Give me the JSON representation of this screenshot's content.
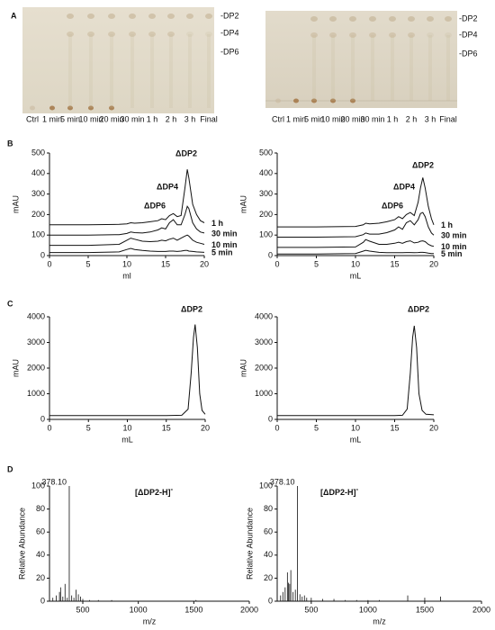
{
  "panels": [
    "A",
    "B",
    "C",
    "D"
  ],
  "tlc": [
    {
      "lanes": [
        "Ctrl",
        "1 min",
        "5 min",
        "10 min",
        "20 min",
        "30 min",
        "1 h",
        "2 h",
        "3 h",
        "Final"
      ],
      "markers": [
        "-DP2",
        "-DP4",
        "-DP6"
      ]
    },
    {
      "lanes": [
        "Ctrl",
        "1 min",
        "5 min",
        "10 min",
        "20 min",
        "30 min",
        "1 h",
        "2 h",
        "3 h",
        "Final"
      ],
      "markers": [
        "-DP2",
        "-DP4",
        "-DP6"
      ]
    }
  ],
  "chart_data": [
    {
      "type": "line",
      "xlabel": "ml",
      "ylabel": "mAU",
      "xlim": [
        0,
        20
      ],
      "ylim": [
        0,
        500
      ],
      "xticks": [
        0,
        5,
        10,
        15,
        20
      ],
      "yticks": [
        0,
        100,
        200,
        300,
        400,
        500
      ],
      "annotations": [
        "ΔDP2",
        "ΔDP4",
        "ΔDP6"
      ],
      "x": [
        0,
        5,
        9,
        10,
        10.5,
        11,
        12,
        13,
        14,
        14.5,
        15,
        15.5,
        16,
        16.5,
        17,
        17.5,
        17.8,
        18,
        18.5,
        19,
        19.5,
        20
      ],
      "series": [
        {
          "name": "1 h",
          "color": "#111111",
          "values": [
            150,
            150,
            152,
            155,
            160,
            158,
            160,
            165,
            170,
            180,
            175,
            195,
            205,
            190,
            195,
            330,
            420,
            380,
            250,
            200,
            170,
            160
          ]
        },
        {
          "name": "30 min",
          "color": "#111111",
          "values": [
            100,
            100,
            102,
            108,
            115,
            112,
            110,
            115,
            125,
            135,
            130,
            160,
            175,
            150,
            150,
            200,
            240,
            230,
            160,
            130,
            115,
            110
          ]
        },
        {
          "name": "10 min",
          "color": "#111111",
          "values": [
            50,
            50,
            55,
            75,
            85,
            80,
            70,
            68,
            70,
            75,
            72,
            80,
            85,
            75,
            85,
            95,
            100,
            95,
            75,
            65,
            60,
            55
          ]
        },
        {
          "name": "5 min",
          "color": "#111111",
          "values": [
            15,
            15,
            18,
            30,
            35,
            30,
            25,
            22,
            20,
            20,
            20,
            22,
            22,
            20,
            22,
            25,
            25,
            22,
            20,
            18,
            17,
            16
          ]
        }
      ]
    },
    {
      "type": "line",
      "xlabel": "mL",
      "ylabel": "mAU",
      "xlim": [
        0,
        20
      ],
      "ylim": [
        0,
        500
      ],
      "xticks": [
        0,
        5,
        10,
        15,
        20
      ],
      "yticks": [
        0,
        100,
        200,
        300,
        400,
        500
      ],
      "annotations": [
        "ΔDP2",
        "ΔDP4",
        "ΔDP6"
      ],
      "x": [
        0,
        5,
        10,
        11,
        11.3,
        11.8,
        13,
        14,
        15,
        15.5,
        16,
        16.5,
        17,
        17.5,
        18,
        18.3,
        18.6,
        18.9,
        19.3,
        19.7,
        20
      ],
      "series": [
        {
          "name": "1 h",
          "color": "#111111",
          "values": [
            140,
            140,
            142,
            150,
            158,
            155,
            158,
            165,
            175,
            190,
            180,
            200,
            210,
            195,
            260,
            330,
            380,
            330,
            240,
            180,
            150
          ]
        },
        {
          "name": "30 min",
          "color": "#111111",
          "values": [
            90,
            90,
            92,
            102,
            110,
            105,
            105,
            112,
            125,
            140,
            128,
            160,
            170,
            150,
            175,
            205,
            210,
            190,
            140,
            110,
            100
          ]
        },
        {
          "name": "10 min",
          "color": "#111111",
          "values": [
            40,
            40,
            42,
            65,
            78,
            70,
            55,
            55,
            60,
            65,
            60,
            68,
            72,
            62,
            65,
            70,
            72,
            68,
            55,
            48,
            45
          ]
        },
        {
          "name": "5 min",
          "color": "#111111",
          "values": [
            8,
            8,
            10,
            22,
            26,
            22,
            16,
            14,
            14,
            14,
            14,
            15,
            15,
            14,
            15,
            16,
            16,
            15,
            12,
            10,
            10
          ]
        }
      ]
    },
    {
      "type": "line",
      "xlabel": "mL",
      "ylabel": "mAU",
      "xlim": [
        0,
        20
      ],
      "ylim": [
        0,
        4000
      ],
      "xticks": [
        0,
        5,
        10,
        15,
        20
      ],
      "yticks": [
        0,
        1000,
        2000,
        3000,
        4000
      ],
      "annotations": [
        "ΔDP2"
      ],
      "x": [
        0,
        5,
        10,
        15,
        17,
        17.8,
        18.2,
        18.5,
        18.7,
        19,
        19.3,
        19.6,
        20
      ],
      "series": [
        {
          "name": null,
          "color": "#111111",
          "values": [
            150,
            150,
            150,
            152,
            160,
            400,
            1800,
            3200,
            3700,
            2800,
            1000,
            350,
            200
          ]
        }
      ]
    },
    {
      "type": "line",
      "xlabel": "mL",
      "ylabel": "mAU",
      "xlim": [
        0,
        20
      ],
      "ylim": [
        0,
        4000
      ],
      "xticks": [
        0,
        5,
        10,
        15,
        20
      ],
      "yticks": [
        0,
        1000,
        2000,
        3000,
        4000
      ],
      "annotations": [
        "ΔDP2"
      ],
      "x": [
        0,
        5,
        10,
        15,
        16,
        16.6,
        17,
        17.3,
        17.5,
        17.8,
        18.1,
        18.5,
        19,
        20
      ],
      "series": [
        {
          "name": null,
          "color": "#111111",
          "values": [
            150,
            150,
            150,
            152,
            160,
            400,
            1800,
            3200,
            3650,
            2800,
            1000,
            350,
            200,
            180
          ]
        }
      ]
    },
    {
      "type": "stem",
      "xlabel": "m/z",
      "ylabel": "Relative Abundance",
      "xlim": [
        200,
        2000
      ],
      "ylim": [
        0,
        100
      ],
      "xticks": [
        500,
        1000,
        1500,
        2000
      ],
      "yticks": [
        0,
        20,
        40,
        60,
        80,
        100
      ],
      "ion": "[ΔDP2-H]",
      "ion_charge": "-",
      "annotations": [
        {
          "value": 378.1,
          "label": "378.10"
        }
      ],
      "color": "#111111",
      "x": [
        230,
        260,
        290,
        300,
        320,
        340,
        360,
        378.1,
        400,
        420,
        440,
        460,
        480,
        500,
        560,
        640,
        760,
        1520
      ],
      "values": [
        3,
        5,
        8,
        12,
        4,
        15,
        3,
        100,
        5,
        3,
        10,
        6,
        4,
        2,
        1,
        1,
        1,
        1
      ]
    },
    {
      "type": "stem",
      "xlabel": "m/z",
      "ylabel": "Relative Abundance",
      "xlim": [
        200,
        2000
      ],
      "ylim": [
        0,
        100
      ],
      "xticks": [
        500,
        1000,
        1500,
        2000
      ],
      "yticks": [
        0,
        20,
        40,
        60,
        80,
        100
      ],
      "ion": "[ΔDP2-H]",
      "ion_charge": "-",
      "annotations": [
        {
          "value": 378.1,
          "label": "378.10"
        }
      ],
      "color": "#111111",
      "x": [
        230,
        250,
        270,
        290,
        300,
        310,
        320,
        340,
        360,
        378.1,
        400,
        420,
        440,
        460,
        500,
        600,
        700,
        800,
        900,
        1000,
        1100,
        1350,
        1500,
        1640
      ],
      "values": [
        5,
        8,
        12,
        25,
        16,
        15,
        27,
        8,
        10,
        100,
        6,
        4,
        5,
        3,
        3,
        2,
        2,
        1,
        1,
        1,
        1,
        5,
        3,
        4
      ]
    }
  ]
}
